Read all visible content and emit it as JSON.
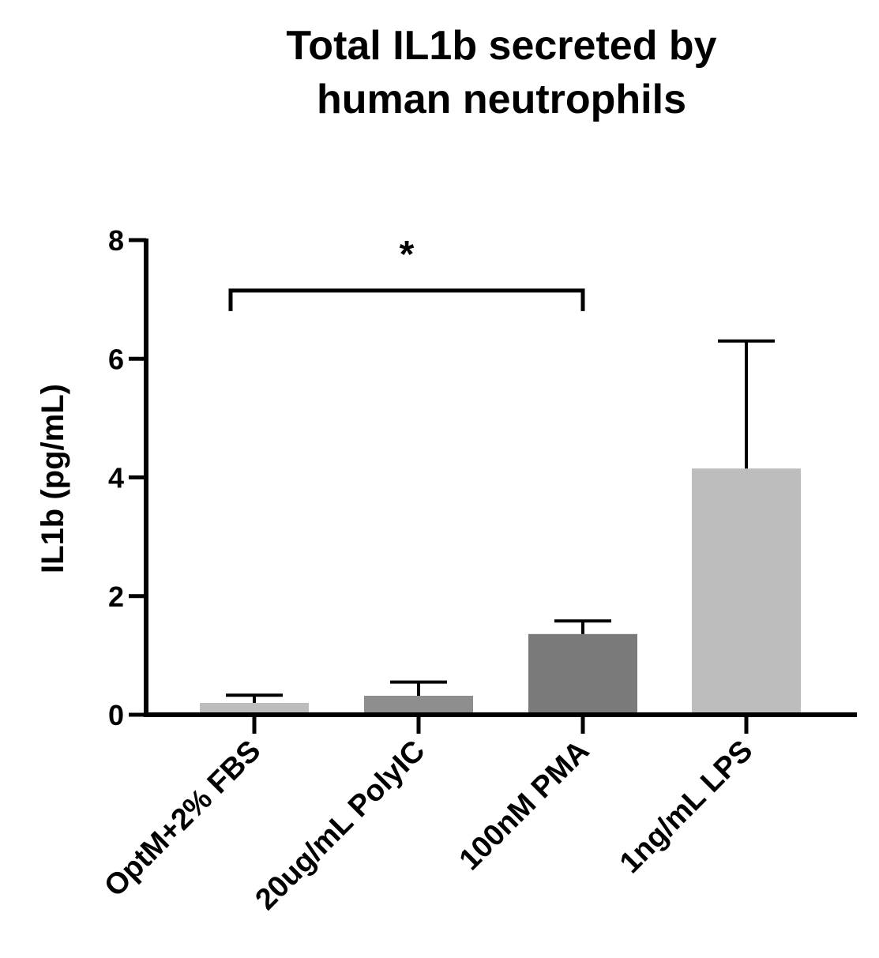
{
  "chart_data": {
    "type": "bar",
    "title": [
      "Total IL1b secreted by",
      "human neutrophils"
    ],
    "xlabel": "",
    "ylabel": "IL1b (pg/mL)",
    "ylim": [
      0,
      8
    ],
    "yticks": [
      "0",
      "2",
      "4",
      "6",
      "8"
    ],
    "categories": [
      "OptM+2% FBS",
      "20ug/mL PolyIC",
      "100nM PMA",
      "1ng/mL LPS"
    ],
    "values": [
      0.2,
      0.32,
      1.36,
      4.15
    ],
    "error_upper": [
      0.33,
      0.55,
      1.58,
      6.3
    ],
    "bar_colors": [
      "#bdbdbd",
      "#8e8e8e",
      "#7a7a7a",
      "#bdbdbd"
    ],
    "significance": [
      {
        "from": 0,
        "to": 2,
        "label": "*",
        "y": 7.15
      }
    ],
    "grid": false,
    "legend": "none"
  }
}
